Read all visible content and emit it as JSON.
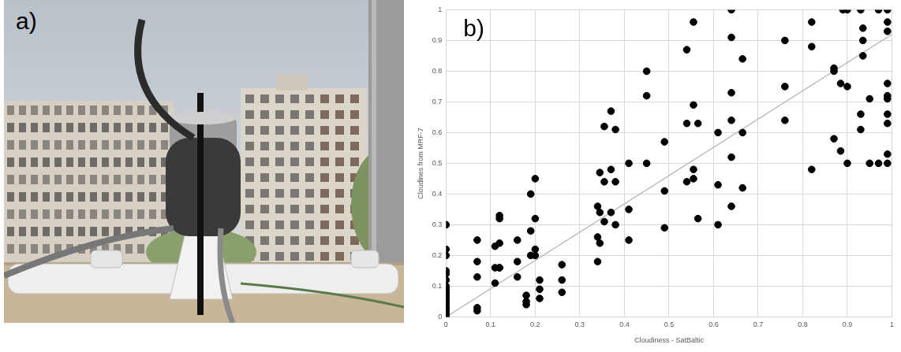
{
  "panel_labels": [
    "a)",
    "b)"
  ],
  "chart_data": {
    "type": "scatter",
    "x_label": "Cloudiness - SatBaltic",
    "y_label": "Cloudines from MRF-7",
    "xlim": [
      0,
      1
    ],
    "ylim": [
      0,
      1
    ],
    "xticks": [
      0,
      0.1,
      0.2,
      0.3,
      0.4,
      0.5,
      0.6,
      0.7,
      0.8,
      0.9,
      1
    ],
    "yticks": [
      0,
      0.1,
      0.2,
      0.3,
      0.4,
      0.5,
      0.6,
      0.7,
      0.8,
      0.9,
      1
    ],
    "grid": true,
    "series": [
      {
        "type": "scatter",
        "color": "#000000",
        "marker": "circle",
        "x": [
          0,
          0,
          0,
          0,
          0,
          0,
          0,
          0,
          0,
          0,
          0,
          0,
          0,
          0,
          0,
          0,
          0,
          0.07,
          0.07,
          0.07,
          0.07,
          0.07,
          0.11,
          0.11,
          0.11,
          0.12,
          0.12,
          0.12,
          0.12,
          0.12,
          0.16,
          0.16,
          0.16,
          0.18,
          0.18,
          0.18,
          0.19,
          0.19,
          0.19,
          0.2,
          0.2,
          0.2,
          0.2,
          0.21,
          0.21,
          0.21,
          0.26,
          0.26,
          0.26,
          0.34,
          0.34,
          0.34,
          0.345,
          0.345,
          0.345,
          0.355,
          0.355,
          0.355,
          0.37,
          0.37,
          0.37,
          0.38,
          0.38,
          0.38,
          0.41,
          0.41,
          0.41,
          0.45,
          0.45,
          0.45,
          0.49,
          0.49,
          0.49,
          0.54,
          0.54,
          0.54,
          0.555,
          0.555,
          0.555,
          0.555,
          0.565,
          0.565,
          0.61,
          0.61,
          0.61,
          0.64,
          0.64,
          0.64,
          0.64,
          0.64,
          0.64,
          0.665,
          0.665,
          0.665,
          0.76,
          0.76,
          0.76,
          0.82,
          0.82,
          0.82,
          0.87,
          0.87,
          0.87,
          0.885,
          0.885,
          0.89,
          0.9,
          0.9,
          0.9,
          0.93,
          0.93,
          0.93,
          0.935,
          0.935,
          0.935,
          0.95,
          0.95,
          0.97,
          0.97,
          0.99,
          0.99,
          0.99,
          0.99,
          0.99,
          0.99,
          0.99,
          0.99,
          0.99,
          0.99
        ],
        "values": [
          0.3,
          0.22,
          0.2,
          0.15,
          0.14,
          0.12,
          0.1,
          0.09,
          0.08,
          0.07,
          0.06,
          0.05,
          0.04,
          0.03,
          0.02,
          0.01,
          0,
          0.25,
          0.18,
          0.13,
          0.03,
          0.02,
          0.23,
          0.16,
          0.11,
          0.33,
          0.32,
          0.24,
          0.16,
          0.16,
          0.25,
          0.18,
          0.13,
          0.07,
          0.05,
          0.04,
          0.4,
          0.28,
          0.2,
          0.45,
          0.32,
          0.22,
          0.2,
          0.12,
          0.09,
          0.06,
          0.17,
          0.12,
          0.08,
          0.36,
          0.26,
          0.18,
          0.47,
          0.34,
          0.24,
          0.62,
          0.44,
          0.31,
          0.67,
          0.48,
          0.34,
          0.61,
          0.44,
          0.3,
          0.5,
          0.35,
          0.25,
          0.8,
          0.72,
          0.5,
          0.57,
          0.41,
          0.29,
          0.87,
          0.63,
          0.44,
          0.96,
          0.69,
          0.48,
          0.45,
          0.63,
          0.32,
          0.6,
          0.43,
          0.3,
          1,
          0.91,
          0.73,
          0.64,
          0.52,
          0.36,
          0.84,
          0.6,
          0.42,
          0.9,
          0.75,
          0.64,
          0.96,
          0.88,
          0.48,
          0.81,
          0.8,
          0.58,
          0.76,
          0.54,
          1,
          1,
          0.75,
          0.5,
          1,
          0.66,
          0.61,
          0.94,
          0.9,
          0.85,
          0.71,
          0.5,
          1,
          0.5,
          1,
          0.96,
          0.93,
          0.76,
          0.72,
          0.71,
          0.66,
          0.63,
          0.53,
          0.5
        ]
      },
      {
        "type": "line",
        "color": "#b0b0b0",
        "line_style": "solid",
        "x": [
          0,
          1
        ],
        "values": [
          0,
          0.92
        ]
      }
    ]
  }
}
